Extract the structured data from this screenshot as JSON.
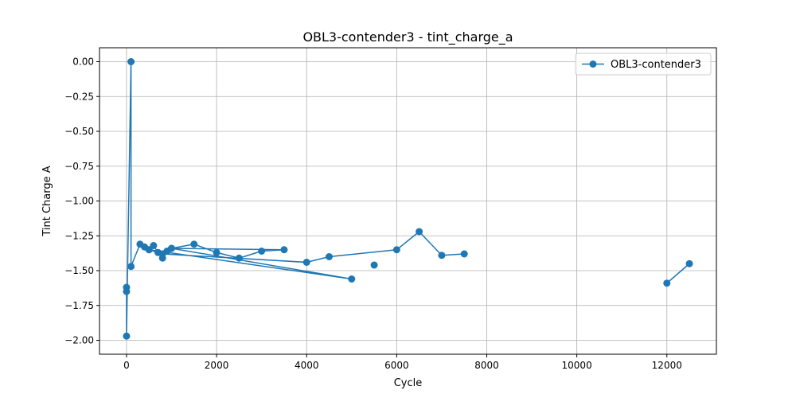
{
  "chart_data": {
    "type": "line",
    "title": "OBL3-contender3 - tint_charge_a",
    "xlabel": "Cycle",
    "ylabel": "Tint Charge A",
    "xlim": [
      -600,
      13100
    ],
    "ylim": [
      -2.1,
      0.1
    ],
    "grid": true,
    "legend_position": "upper right",
    "xticks": [
      0,
      2000,
      4000,
      6000,
      8000,
      10000,
      12000
    ],
    "yticks": [
      0.0,
      -0.25,
      -0.5,
      -0.75,
      -1.0,
      -1.25,
      -1.5,
      -1.75,
      -2.0
    ],
    "xtick_labels": [
      "0",
      "2000",
      "4000",
      "6000",
      "8000",
      "10000",
      "12000"
    ],
    "ytick_labels": [
      "0.00",
      "−0.25",
      "−0.50",
      "−0.75",
      "−1.00",
      "−1.25",
      "−1.50",
      "−1.75",
      "−2.00"
    ],
    "series": [
      {
        "name": "OBL3-contender3",
        "color": "#1f77b4",
        "marker": "circle",
        "segments": [
          [
            [
              0,
              -1.62
            ],
            [
              0,
              -1.65
            ],
            [
              0,
              -1.97
            ],
            [
              100,
              0.0
            ],
            [
              100,
              -1.47
            ],
            [
              300,
              -1.31
            ],
            [
              400,
              -1.33
            ],
            [
              500,
              -1.35
            ],
            [
              600,
              -1.32
            ],
            [
              700,
              -1.37
            ],
            [
              800,
              -1.41
            ],
            [
              900,
              -1.36
            ],
            [
              1000,
              -1.34
            ],
            [
              1500,
              -1.31
            ],
            [
              2000,
              -1.37
            ],
            [
              2500,
              -1.41
            ],
            [
              3000,
              -1.36
            ],
            [
              3500,
              -1.35
            ],
            [
              1000,
              -1.34
            ],
            [
              5000,
              -1.56
            ],
            [
              500,
              -1.35
            ],
            [
              800,
              -1.38
            ],
            [
              4000,
              -1.44
            ],
            [
              4500,
              -1.4
            ],
            [
              6000,
              -1.35
            ],
            [
              6500,
              -1.22
            ],
            [
              7000,
              -1.39
            ],
            [
              7500,
              -1.38
            ]
          ],
          [
            [
              5500,
              -1.46
            ]
          ],
          [
            [
              12000,
              -1.59
            ],
            [
              12500,
              -1.45
            ]
          ]
        ]
      }
    ]
  }
}
